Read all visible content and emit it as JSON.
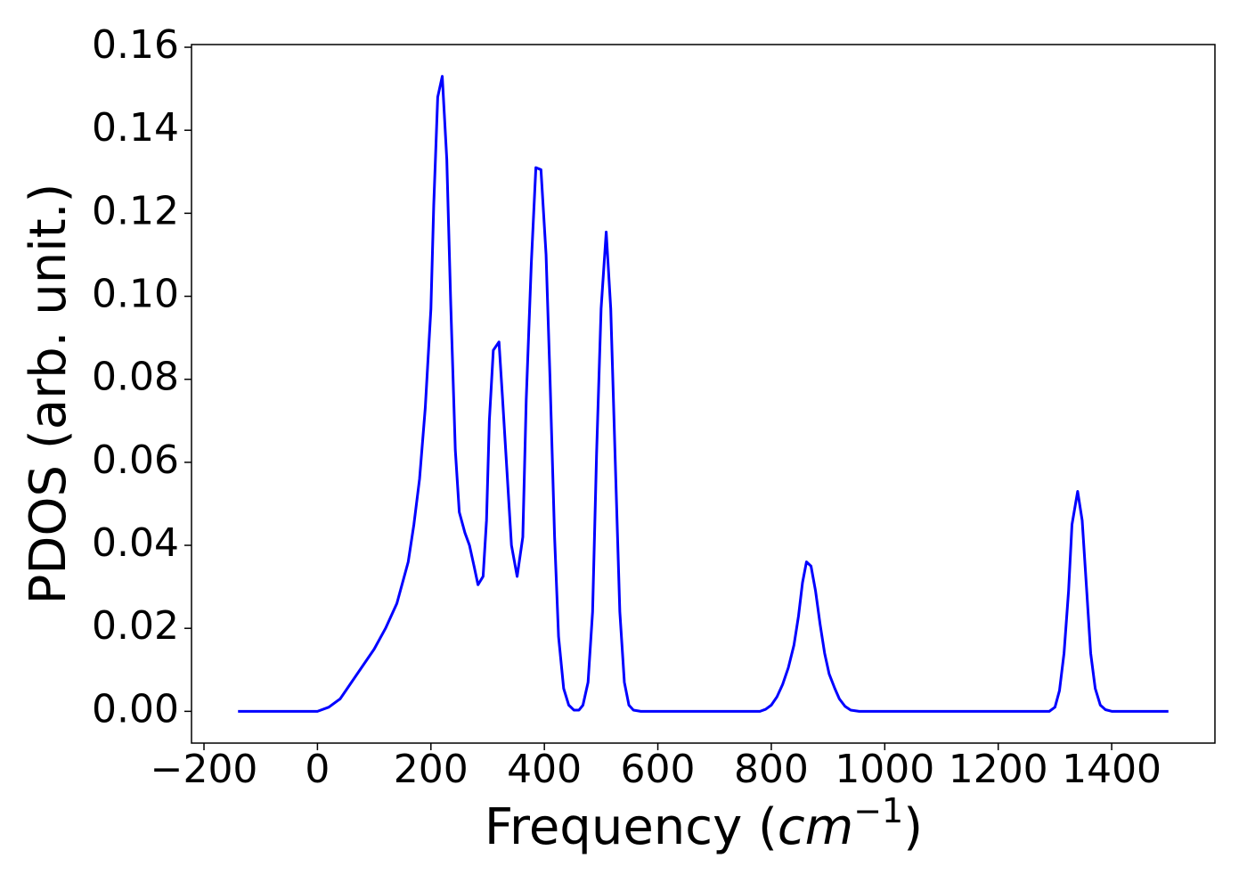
{
  "chart_data": {
    "type": "line",
    "xlabel": [
      "Frequency (",
      "cm",
      "−1",
      ")"
    ],
    "ylabel": "PDOS (arb. unit.)",
    "xlim": [
      -222,
      1582
    ],
    "ylim": [
      -0.00765,
      0.16065
    ],
    "xticks": [
      {
        "value": -200,
        "label": "−200"
      },
      0,
      200,
      400,
      600,
      800,
      1000,
      1200,
      1400
    ],
    "yticks": [
      {
        "value": 0,
        "label": "0.00"
      },
      {
        "value": 0.02,
        "label": "0.02"
      },
      {
        "value": 0.04,
        "label": "0.04"
      },
      {
        "value": 0.06,
        "label": "0.06"
      },
      {
        "value": 0.08,
        "label": "0.08"
      },
      {
        "value": 0.1,
        "label": "0.10"
      },
      {
        "value": 0.12,
        "label": "0.12"
      },
      {
        "value": 0.14,
        "label": "0.14"
      },
      {
        "value": 0.16,
        "label": "0.16"
      }
    ],
    "grid": false,
    "x": [
      -140,
      0,
      20,
      40,
      60,
      80,
      100,
      120,
      140,
      160,
      170,
      180,
      190,
      200,
      205,
      212,
      220,
      228,
      235,
      243,
      250,
      260,
      268,
      276,
      283,
      292,
      298,
      303,
      310,
      320,
      326,
      334,
      342,
      352,
      362,
      368,
      377,
      385,
      394,
      403,
      410,
      418,
      425,
      434,
      443,
      452,
      461,
      468,
      477,
      485,
      492,
      500,
      509,
      517,
      525,
      533,
      541,
      549,
      557,
      570,
      780,
      790,
      800,
      810,
      820,
      830,
      840,
      848,
      855,
      862,
      870,
      878,
      886,
      894,
      902,
      912,
      920,
      930,
      940,
      955,
      1290,
      1300,
      1308,
      1316,
      1324,
      1330,
      1340,
      1348,
      1356,
      1363,
      1371,
      1380,
      1389,
      1400,
      1500
    ],
    "series": [
      {
        "name": "PDOS",
        "color": "#0000ff",
        "values": [
          0,
          0,
          0.001,
          0.003,
          0.007,
          0.011,
          0.015,
          0.02,
          0.026,
          0.036,
          0.045,
          0.056,
          0.073,
          0.097,
          0.122,
          0.148,
          0.153,
          0.133,
          0.098,
          0.063,
          0.048,
          0.043,
          0.04,
          0.035,
          0.0305,
          0.0325,
          0.046,
          0.07,
          0.087,
          0.089,
          0.076,
          0.058,
          0.04,
          0.0325,
          0.042,
          0.075,
          0.108,
          0.131,
          0.1305,
          0.11,
          0.08,
          0.042,
          0.018,
          0.0055,
          0.0015,
          0.0003,
          0.0003,
          0.0015,
          0.007,
          0.024,
          0.062,
          0.097,
          0.1155,
          0.097,
          0.06,
          0.024,
          0.007,
          0.0015,
          0.0003,
          0,
          0,
          0.0005,
          0.0015,
          0.0035,
          0.0065,
          0.0105,
          0.016,
          0.023,
          0.031,
          0.036,
          0.035,
          0.029,
          0.021,
          0.014,
          0.009,
          0.0055,
          0.003,
          0.0012,
          0.0003,
          0,
          0,
          0.001,
          0.005,
          0.014,
          0.029,
          0.045,
          0.053,
          0.046,
          0.029,
          0.014,
          0.0055,
          0.0015,
          0.0004,
          0,
          0
        ]
      }
    ]
  }
}
